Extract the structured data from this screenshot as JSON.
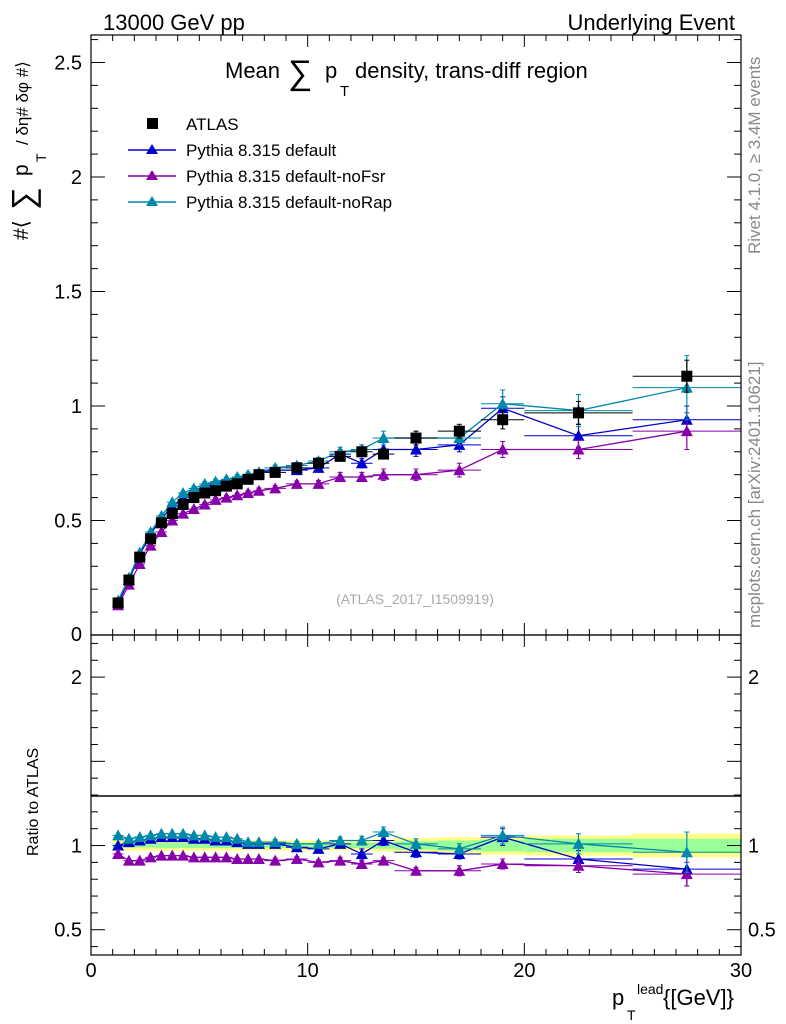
{
  "header": {
    "left": "13000 GeV pp",
    "right": "Underlying Event"
  },
  "side_labels": {
    "rivet": "Rivet 4.1.0, ≥ 3.4M events",
    "mcplots": "mcplots.cern.ch [arXiv:2401.10621]"
  },
  "chart_data": [
    {
      "type": "scatter",
      "panel": "main",
      "title_parts": {
        "pre": "Mean",
        "sum": "∑",
        "p": "p",
        "sub": "T",
        "post": "density, trans-diff region"
      },
      "ylabel": {
        "prefix": "#⟨",
        "sum": "∑",
        "p": "p",
        "sub": "T",
        "suffix": "/ δη# δφ #⟩"
      },
      "reference": "(ATLAS_2017_I1509919)",
      "xlim": [
        0,
        30
      ],
      "ylim": [
        0,
        2.62
      ],
      "yticks": [
        {
          "v": 0.5,
          "label": "0.5"
        },
        {
          "v": 1,
          "label": "1"
        },
        {
          "v": 1.5,
          "label": "1.5"
        },
        {
          "v": 2,
          "label": "2"
        },
        {
          "v": 2.5,
          "label": "2.5"
        }
      ],
      "y_zero_label": "0",
      "x": [
        1.25,
        1.75,
        2.25,
        2.75,
        3.25,
        3.75,
        4.25,
        4.75,
        5.25,
        5.75,
        6.25,
        6.75,
        7.25,
        7.75,
        8.5,
        9.5,
        10.5,
        11.5,
        12.5,
        13.5,
        15,
        17,
        19,
        22.5,
        27.5
      ],
      "x_err": [
        0.25,
        0.25,
        0.25,
        0.25,
        0.25,
        0.25,
        0.25,
        0.25,
        0.25,
        0.25,
        0.25,
        0.25,
        0.25,
        0.25,
        0.5,
        0.5,
        0.5,
        0.5,
        0.5,
        0.5,
        1,
        1,
        1,
        2.5,
        2.5
      ],
      "series": [
        {
          "name": "ATLAS",
          "marker": "square",
          "color": "#000000",
          "values": [
            0.14,
            0.24,
            0.34,
            0.42,
            0.49,
            0.53,
            0.57,
            0.6,
            0.62,
            0.63,
            0.65,
            0.66,
            0.68,
            0.7,
            0.71,
            0.73,
            0.75,
            0.78,
            0.8,
            0.79,
            0.86,
            0.89,
            0.94,
            0.97,
            1.13
          ],
          "errors": [
            0.004,
            0.005,
            0.006,
            0.008,
            0.01,
            0.01,
            0.01,
            0.01,
            0.01,
            0.01,
            0.01,
            0.01,
            0.01,
            0.01,
            0.01,
            0.012,
            0.015,
            0.015,
            0.02,
            0.02,
            0.03,
            0.03,
            0.04,
            0.05,
            0.07
          ]
        },
        {
          "name": "Pythia 8.315 default",
          "marker": "triangle",
          "color": "#0000cc",
          "values": [
            0.14,
            0.24,
            0.35,
            0.44,
            0.51,
            0.56,
            0.6,
            0.63,
            0.65,
            0.66,
            0.67,
            0.68,
            0.69,
            0.71,
            0.72,
            0.72,
            0.73,
            0.79,
            0.75,
            0.81,
            0.81,
            0.83,
            0.99,
            0.87,
            0.94
          ],
          "errors": [
            0.005,
            0.005,
            0.006,
            0.006,
            0.007,
            0.008,
            0.008,
            0.009,
            0.009,
            0.01,
            0.01,
            0.01,
            0.011,
            0.012,
            0.012,
            0.013,
            0.015,
            0.02,
            0.02,
            0.03,
            0.03,
            0.03,
            0.05,
            0.05,
            0.06
          ]
        },
        {
          "name": "Pythia 8.315 default-noFsr",
          "marker": "triangle",
          "color": "#8800aa",
          "values": [
            0.13,
            0.22,
            0.31,
            0.39,
            0.45,
            0.5,
            0.53,
            0.55,
            0.57,
            0.59,
            0.6,
            0.61,
            0.62,
            0.63,
            0.64,
            0.66,
            0.66,
            0.69,
            0.69,
            0.7,
            0.7,
            0.72,
            0.81,
            0.81,
            0.89
          ],
          "errors": [
            0.005,
            0.005,
            0.006,
            0.006,
            0.007,
            0.008,
            0.008,
            0.009,
            0.009,
            0.01,
            0.01,
            0.01,
            0.011,
            0.012,
            0.012,
            0.013,
            0.015,
            0.02,
            0.02,
            0.025,
            0.025,
            0.03,
            0.035,
            0.04,
            0.08
          ]
        },
        {
          "name": "Pythia 8.315 default-noRap",
          "marker": "triangle",
          "color": "#0088aa",
          "values": [
            0.15,
            0.25,
            0.36,
            0.45,
            0.52,
            0.58,
            0.62,
            0.64,
            0.66,
            0.67,
            0.68,
            0.69,
            0.7,
            0.71,
            0.73,
            0.74,
            0.76,
            0.8,
            0.81,
            0.86,
            0.86,
            0.86,
            1.01,
            0.98,
            1.08
          ],
          "errors": [
            0.005,
            0.005,
            0.006,
            0.006,
            0.007,
            0.008,
            0.008,
            0.009,
            0.009,
            0.01,
            0.01,
            0.01,
            0.011,
            0.012,
            0.012,
            0.013,
            0.015,
            0.02,
            0.02,
            0.03,
            0.03,
            0.03,
            0.06,
            0.07,
            0.14
          ]
        }
      ]
    },
    {
      "type": "scatter",
      "panel": "ratio",
      "ylabel": "Ratio to ATLAS",
      "xlabel": {
        "p": "p",
        "sup": "lead",
        "sub": "T",
        "unit": "{[GeV]}"
      },
      "xlim": [
        0,
        30
      ],
      "ylim": [
        0.35,
        2.25
      ],
      "yticks": [
        {
          "v": 0.5,
          "label": "0.5"
        },
        {
          "v": 1,
          "label": "1"
        },
        {
          "v": 2,
          "label": "2"
        }
      ],
      "xticks": [
        {
          "v": 0,
          "label": "0"
        },
        {
          "v": 10,
          "label": "10"
        },
        {
          "v": 20,
          "label": "20"
        },
        {
          "v": 30,
          "label": "30"
        }
      ],
      "band_colors": {
        "stat": "#99ff99",
        "total": "#ffff88"
      },
      "band_inner": [
        0.012,
        0.012,
        0.012,
        0.012,
        0.015,
        0.015,
        0.015,
        0.015,
        0.015,
        0.015,
        0.015,
        0.015,
        0.015,
        0.015,
        0.015,
        0.015,
        0.015,
        0.015,
        0.015,
        0.02,
        0.025,
        0.03,
        0.035,
        0.04,
        0.04
      ],
      "band_outer": [
        0.03,
        0.03,
        0.03,
        0.03,
        0.03,
        0.03,
        0.03,
        0.03,
        0.03,
        0.03,
        0.03,
        0.03,
        0.03,
        0.03,
        0.03,
        0.03,
        0.03,
        0.03,
        0.03,
        0.035,
        0.045,
        0.05,
        0.055,
        0.06,
        0.07
      ],
      "series": [
        {
          "name": "Pythia 8.315 default",
          "color": "#0000cc",
          "values": [
            1.0,
            1.02,
            1.03,
            1.04,
            1.05,
            1.05,
            1.05,
            1.04,
            1.04,
            1.03,
            1.03,
            1.02,
            1.01,
            1.01,
            1.01,
            0.99,
            0.98,
            1.01,
            0.95,
            1.03,
            0.96,
            0.95,
            1.05,
            0.92,
            0.86
          ],
          "errors": [
            0.01,
            0.01,
            0.01,
            0.01,
            0.01,
            0.01,
            0.01,
            0.01,
            0.01,
            0.01,
            0.01,
            0.01,
            0.01,
            0.01,
            0.015,
            0.015,
            0.015,
            0.02,
            0.03,
            0.03,
            0.03,
            0.03,
            0.05,
            0.05,
            0.1
          ]
        },
        {
          "name": "Pythia 8.315 default-noFsr",
          "color": "#8800aa",
          "values": [
            0.95,
            0.91,
            0.91,
            0.93,
            0.94,
            0.94,
            0.94,
            0.93,
            0.93,
            0.93,
            0.93,
            0.92,
            0.92,
            0.92,
            0.91,
            0.92,
            0.9,
            0.91,
            0.89,
            0.91,
            0.85,
            0.85,
            0.89,
            0.88,
            0.83
          ],
          "errors": [
            0.01,
            0.01,
            0.01,
            0.01,
            0.01,
            0.01,
            0.01,
            0.01,
            0.01,
            0.01,
            0.01,
            0.01,
            0.01,
            0.01,
            0.015,
            0.015,
            0.015,
            0.02,
            0.02,
            0.02,
            0.02,
            0.03,
            0.03,
            0.04,
            0.07
          ]
        },
        {
          "name": "Pythia 8.315 default-noRap",
          "color": "#0088aa",
          "values": [
            1.06,
            1.04,
            1.05,
            1.06,
            1.07,
            1.07,
            1.07,
            1.06,
            1.06,
            1.05,
            1.05,
            1.04,
            1.02,
            1.02,
            1.02,
            1.01,
            1.01,
            1.03,
            1.03,
            1.08,
            1.01,
            0.98,
            1.06,
            1.01,
            0.96
          ],
          "errors": [
            0.01,
            0.01,
            0.01,
            0.01,
            0.01,
            0.01,
            0.01,
            0.01,
            0.01,
            0.01,
            0.01,
            0.01,
            0.01,
            0.01,
            0.015,
            0.015,
            0.015,
            0.02,
            0.025,
            0.03,
            0.03,
            0.03,
            0.05,
            0.06,
            0.12
          ]
        }
      ]
    }
  ]
}
